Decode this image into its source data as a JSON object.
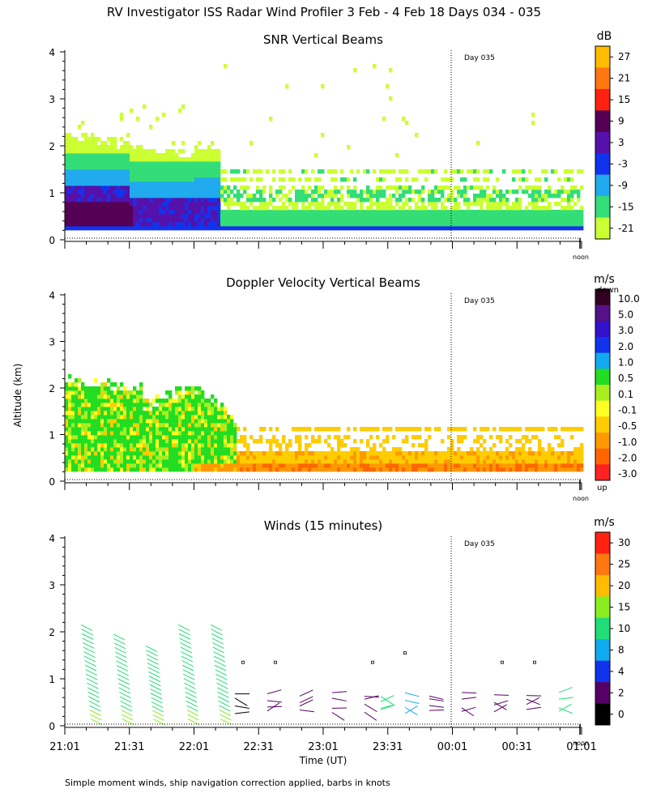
{
  "title": "RV Investigator ISS Radar Wind Profiler    3 Feb -  4 Feb 18 Days 034 - 035",
  "y_axis_label": "Altitude (km)",
  "footnote": "Simple moment winds, ship navigation correction applied, barbs in knots",
  "chart_data": [
    {
      "type": "heatmap",
      "title": "SNR Vertical Beams",
      "ylim": [
        0,
        4
      ],
      "yticks": [
        "0",
        "1",
        "2",
        "3",
        "4"
      ],
      "day_marker": "Day 035",
      "noon_label": "noon",
      "colorbar": {
        "unit": "dB",
        "levels": [
          "-21",
          "-15",
          "-9",
          "-3",
          "3",
          "9",
          "15",
          "21",
          "27"
        ],
        "colors": [
          "#ccff33",
          "#33dd77",
          "#22aaee",
          "#1133ee",
          "#5511aa",
          "#550055",
          "#ff2211",
          "#ff7711",
          "#ffbb00"
        ]
      }
    },
    {
      "type": "heatmap",
      "title": "Doppler Velocity Vertical Beams",
      "ylim": [
        0,
        4
      ],
      "yticks": [
        "0",
        "1",
        "2",
        "3",
        "4"
      ],
      "day_marker": "Day 035",
      "noon_label": "noon",
      "colorbar": {
        "unit": "m/s",
        "top_label": "down",
        "bottom_label": "up",
        "levels": [
          "10.0",
          "5.0",
          "3.0",
          "2.0",
          "1.0",
          "0.5",
          "0.1",
          "-0.1",
          "-0.5",
          "-1.0",
          "-2.0",
          "-3.0"
        ],
        "colors": [
          "#330022",
          "#551188",
          "#3311cc",
          "#1133ee",
          "#11aaee",
          "#22dd22",
          "#aaee22",
          "#ffff22",
          "#ffcc00",
          "#ff9900",
          "#ff6600",
          "#ff2222"
        ]
      }
    },
    {
      "type": "scatter",
      "title": "Winds (15 minutes)",
      "ylim": [
        0,
        4
      ],
      "yticks": [
        "0",
        "1",
        "2",
        "3",
        "4"
      ],
      "day_marker": "Day 035",
      "noon_label": "noon",
      "xlabel": "Time (UT)",
      "xticks": [
        "21:01",
        "21:31",
        "22:01",
        "22:31",
        "23:01",
        "23:31",
        "00:01",
        "00:31",
        "01:01"
      ],
      "colorbar": {
        "unit": "m/s",
        "levels": [
          "0",
          "2",
          "4",
          "8",
          "10",
          "15",
          "20",
          "25",
          "30"
        ],
        "colors": [
          "#000000",
          "#550066",
          "#1133ee",
          "#11aaee",
          "#22dd77",
          "#88ee22",
          "#ffbb00",
          "#ff7711",
          "#ff2211"
        ]
      }
    }
  ]
}
